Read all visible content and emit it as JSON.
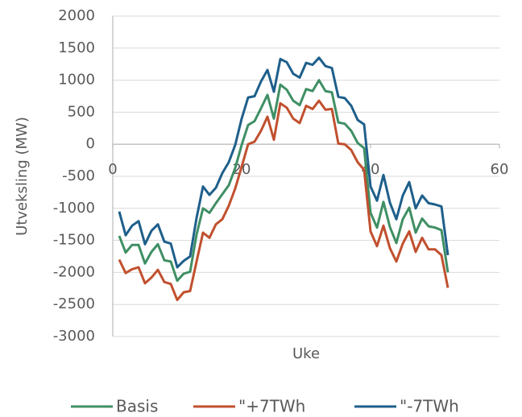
{
  "chart_data": {
    "type": "line",
    "x_label": "Uke",
    "y_label": "Utveksling (MW)",
    "x": [
      1,
      2,
      3,
      4,
      5,
      6,
      7,
      8,
      9,
      10,
      11,
      12,
      13,
      14,
      15,
      16,
      17,
      18,
      19,
      20,
      21,
      22,
      23,
      24,
      25,
      26,
      27,
      28,
      29,
      30,
      31,
      32,
      33,
      34,
      35,
      36,
      37,
      38,
      39,
      40,
      41,
      42,
      43,
      44,
      45,
      46,
      47,
      48,
      49,
      50,
      51,
      52
    ],
    "xlim": [
      0,
      60
    ],
    "xticks": [
      0,
      20,
      40,
      60
    ],
    "ylim": [
      -3000,
      2000
    ],
    "yticks": [
      -3000,
      -2500,
      -2000,
      -1500,
      -1000,
      -500,
      0,
      500,
      1000,
      1500,
      2000
    ],
    "grid": true,
    "legend": "bottom",
    "series": [
      {
        "name": "Basis",
        "color": "#3f8f64",
        "values": [
          -1430,
          -1690,
          -1570,
          -1570,
          -1860,
          -1680,
          -1560,
          -1810,
          -1830,
          -2130,
          -2020,
          -1990,
          -1410,
          -1000,
          -1070,
          -920,
          -780,
          -640,
          -370,
          -10,
          300,
          360,
          560,
          770,
          400,
          930,
          850,
          680,
          610,
          860,
          830,
          1000,
          830,
          810,
          340,
          320,
          210,
          20,
          -60,
          -1070,
          -1300,
          -900,
          -1290,
          -1540,
          -1170,
          -990,
          -1380,
          -1160,
          -1280,
          -1300,
          -1340,
          -2000
        ]
      },
      {
        "name": "\"+7TWh",
        "color": "#c1502e",
        "values": [
          -1800,
          -2010,
          -1950,
          -1920,
          -2170,
          -2080,
          -1960,
          -2150,
          -2180,
          -2430,
          -2310,
          -2290,
          -1830,
          -1380,
          -1460,
          -1250,
          -1170,
          -960,
          -690,
          -350,
          0,
          40,
          210,
          430,
          70,
          640,
          570,
          400,
          330,
          600,
          550,
          680,
          540,
          550,
          10,
          0,
          -90,
          -280,
          -400,
          -1360,
          -1590,
          -1270,
          -1620,
          -1830,
          -1550,
          -1360,
          -1680,
          -1460,
          -1640,
          -1640,
          -1730,
          -2240
        ]
      },
      {
        "name": "\"-7TWh",
        "color": "#1e5f8b",
        "values": [
          -1050,
          -1420,
          -1270,
          -1200,
          -1560,
          -1350,
          -1250,
          -1520,
          -1550,
          -1920,
          -1820,
          -1750,
          -1150,
          -660,
          -790,
          -680,
          -450,
          -280,
          -10,
          400,
          730,
          750,
          980,
          1160,
          820,
          1330,
          1280,
          1100,
          1040,
          1270,
          1240,
          1350,
          1220,
          1190,
          740,
          720,
          600,
          380,
          310,
          -660,
          -880,
          -480,
          -910,
          -1170,
          -800,
          -590,
          -1000,
          -800,
          -920,
          -940,
          -970,
          -1730
        ]
      }
    ]
  }
}
